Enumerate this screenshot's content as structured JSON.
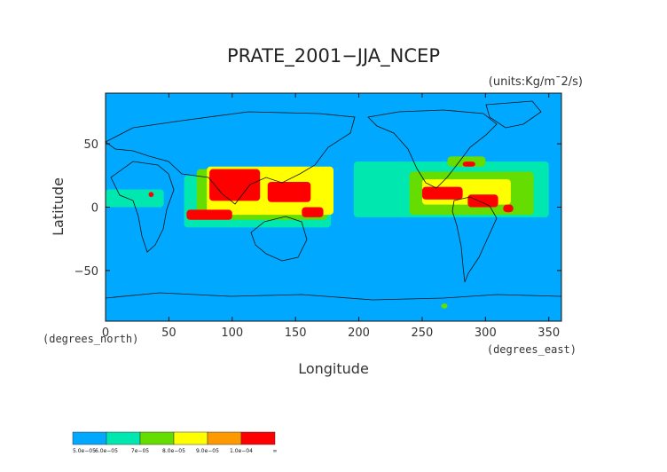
{
  "chart_data": {
    "type": "heatmap",
    "title": "PRATE_2001−JJA_NCEP",
    "units": "(units:Kg/m¯2/s)",
    "xlabel": "Longitude",
    "ylabel": "Latitude",
    "x_unit_note": "(degrees_east)",
    "y_unit_note": "(degrees_north)",
    "xlim": [
      0,
      360
    ],
    "ylim": [
      -90,
      90
    ],
    "x_ticks": [
      "0",
      "50",
      "100",
      "150",
      "200",
      "250",
      "300",
      "350"
    ],
    "y_ticks": [
      "50",
      "0",
      "−50"
    ],
    "colorbar": {
      "labels": [
        "5.0e−05",
        "6.0e−05",
        "7e−05",
        "8.0e−05",
        "9.0e−05",
        "1.0e−04",
        "∞"
      ],
      "colors": [
        "#00a8ff",
        "#00e8b0",
        "#66dd00",
        "#ffff00",
        "#ff9900",
        "#ff0000"
      ]
    },
    "background_color": "#00a8ff",
    "regions": [
      {
        "level": 1,
        "lon": [
          62,
          178
        ],
        "lat": [
          -16,
          25
        ]
      },
      {
        "level": 1,
        "lon": [
          196,
          350
        ],
        "lat": [
          -8,
          36
        ]
      },
      {
        "level": 1,
        "lon": [
          0,
          46
        ],
        "lat": [
          0,
          14
        ]
      },
      {
        "level": 2,
        "lon": [
          72,
          175
        ],
        "lat": [
          -10,
          30
        ]
      },
      {
        "level": 2,
        "lon": [
          240,
          338
        ],
        "lat": [
          -6,
          28
        ]
      },
      {
        "level": 2,
        "lon": [
          270,
          300
        ],
        "lat": [
          32,
          40
        ]
      },
      {
        "level": 3,
        "lon": [
          80,
          180
        ],
        "lat": [
          -6,
          32
        ]
      },
      {
        "level": 3,
        "lon": [
          250,
          320
        ],
        "lat": [
          2,
          22
        ]
      },
      {
        "level": 5,
        "lon": [
          82,
          122
        ],
        "lat": [
          5,
          30
        ]
      },
      {
        "level": 5,
        "lon": [
          128,
          162
        ],
        "lat": [
          4,
          20
        ]
      },
      {
        "level": 5,
        "lon": [
          64,
          100
        ],
        "lat": [
          -10,
          -2
        ]
      },
      {
        "level": 5,
        "lon": [
          155,
          172
        ],
        "lat": [
          -8,
          0
        ]
      },
      {
        "level": 5,
        "lon": [
          250,
          282
        ],
        "lat": [
          6,
          16
        ]
      },
      {
        "level": 5,
        "lon": [
          286,
          310
        ],
        "lat": [
          0,
          10
        ]
      },
      {
        "level": 5,
        "lon": [
          314,
          322
        ],
        "lat": [
          -4,
          2
        ]
      },
      {
        "level": 5,
        "lon": [
          282,
          292
        ],
        "lat": [
          32,
          36
        ]
      },
      {
        "level": 5,
        "lon": [
          34,
          38
        ],
        "lat": [
          8,
          12
        ]
      },
      {
        "level": 2,
        "lon": [
          265,
          270
        ],
        "lat": [
          -80,
          -76
        ]
      }
    ]
  }
}
